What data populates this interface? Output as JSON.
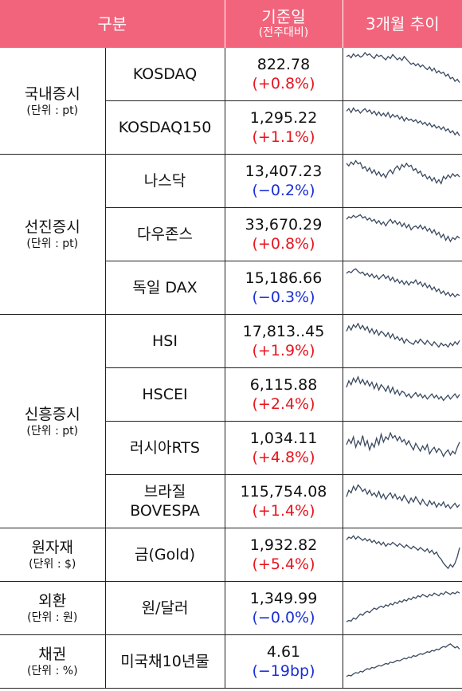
{
  "header": {
    "col_category": "구분",
    "col_value_main": "기준일",
    "col_value_sub": "(전주대비)",
    "col_trend": "3개월 추이"
  },
  "groups": [
    {
      "name": "국내증시",
      "unit": "(단위 : pt)",
      "rows": [
        {
          "name": "KOSDAQ",
          "value": "822.78",
          "change": "(+0.8%)",
          "dir": "up",
          "trend": [
            60,
            62,
            58,
            64,
            60,
            63,
            59,
            61,
            66,
            62,
            64,
            60,
            57,
            63,
            60,
            62,
            58,
            55,
            60,
            57,
            63,
            59,
            55,
            58,
            54,
            60,
            56,
            52,
            48,
            50,
            46,
            49,
            44,
            47,
            43,
            40,
            44,
            38,
            42,
            35,
            38,
            34,
            36,
            30,
            33,
            26,
            28,
            22,
            25,
            20
          ]
        },
        {
          "name": "KOSDAQ150",
          "value": "1,295.22",
          "change": "(+1.1%)",
          "dir": "up",
          "trend": [
            58,
            62,
            56,
            63,
            58,
            60,
            55,
            59,
            62,
            57,
            60,
            54,
            58,
            52,
            57,
            51,
            55,
            50,
            56,
            48,
            53,
            49,
            52,
            46,
            50,
            43,
            48,
            44,
            46,
            42,
            45,
            40,
            43,
            38,
            41,
            36,
            40,
            34,
            37,
            32,
            35,
            30,
            34,
            28,
            31,
            25,
            28,
            22,
            26,
            20
          ]
        }
      ]
    },
    {
      "name": "선진증시",
      "unit": "(단위 : pt)",
      "rows": [
        {
          "name": "나스닥",
          "value": "13,407.23",
          "change": "(−0.2%)",
          "dir": "down",
          "trend": [
            60,
            56,
            62,
            58,
            64,
            59,
            61,
            52,
            55,
            48,
            53,
            45,
            50,
            42,
            47,
            40,
            44,
            38,
            46,
            50,
            44,
            52,
            56,
            50,
            58,
            54,
            60,
            55,
            57,
            49,
            52,
            45,
            48,
            40,
            43,
            36,
            40,
            33,
            38,
            30,
            35,
            29,
            40,
            36,
            42,
            38,
            44,
            40,
            43,
            39
          ]
        },
        {
          "name": "다우존스",
          "value": "33,670.29",
          "change": "(+0.8%)",
          "dir": "up",
          "trend": [
            56,
            60,
            58,
            62,
            59,
            61,
            63,
            58,
            60,
            55,
            58,
            53,
            56,
            50,
            54,
            48,
            52,
            46,
            52,
            56,
            50,
            54,
            48,
            52,
            45,
            50,
            43,
            48,
            40,
            44,
            46,
            42,
            47,
            41,
            45,
            38,
            42,
            35,
            40,
            32,
            36,
            28,
            33,
            24,
            30,
            22,
            28,
            25,
            30,
            27
          ]
        },
        {
          "name": "독일 DAX",
          "value": "15,186.66",
          "change": "(−0.3%)",
          "dir": "down",
          "trend": [
            55,
            58,
            56,
            60,
            62,
            58,
            55,
            57,
            52,
            55,
            50,
            54,
            48,
            52,
            46,
            50,
            53,
            47,
            51,
            44,
            49,
            42,
            46,
            40,
            44,
            38,
            43,
            37,
            42,
            40,
            45,
            38,
            42,
            35,
            40,
            33,
            37,
            30,
            34,
            27,
            31,
            24,
            28,
            22,
            26,
            20,
            24,
            19,
            23,
            21
          ]
        }
      ]
    },
    {
      "name": "신흥증시",
      "unit": "(단위 : pt)",
      "rows": [
        {
          "name": "HSI",
          "value": "17,813..45",
          "change": "(+1.9%)",
          "dir": "up",
          "trend": [
            48,
            56,
            50,
            58,
            54,
            60,
            52,
            57,
            50,
            55,
            46,
            52,
            44,
            50,
            42,
            48,
            45,
            40,
            46,
            38,
            44,
            36,
            40,
            34,
            38,
            30,
            36,
            32,
            30,
            28,
            34,
            30,
            36,
            32,
            28,
            34,
            30,
            26,
            32,
            28,
            24,
            30,
            26,
            28,
            24,
            30,
            26,
            32,
            28,
            34
          ]
        },
        {
          "name": "HSCEI",
          "value": "6,115.88",
          "change": "(+2.4%)",
          "dir": "up",
          "trend": [
            44,
            54,
            48,
            58,
            52,
            60,
            50,
            56,
            48,
            54,
            46,
            52,
            42,
            50,
            40,
            48,
            44,
            38,
            46,
            36,
            44,
            34,
            40,
            32,
            38,
            36,
            30,
            34,
            28,
            32,
            36,
            30,
            34,
            28,
            32,
            26,
            30,
            34,
            28,
            32,
            26,
            30,
            24,
            28,
            32,
            26,
            30,
            34,
            28,
            33
          ]
        },
        {
          "name": "러시아RTS",
          "value": "1,034.11",
          "change": "(+4.8%)",
          "dir": "up",
          "trend": [
            38,
            46,
            40,
            50,
            34,
            44,
            38,
            52,
            36,
            44,
            30,
            40,
            34,
            48,
            38,
            54,
            42,
            50,
            46,
            56,
            48,
            52,
            44,
            50,
            42,
            46,
            38,
            44,
            36,
            30,
            40,
            34,
            28,
            36,
            30,
            38,
            24,
            30,
            34,
            26,
            32,
            28,
            20,
            26,
            30,
            22,
            28,
            24,
            34,
            42
          ]
        },
        {
          "name": "브라질\nBOVESPA",
          "value": "115,754.08",
          "change": "(+1.4%)",
          "dir": "up",
          "trend": [
            40,
            50,
            46,
            56,
            50,
            58,
            54,
            48,
            52,
            44,
            50,
            42,
            46,
            40,
            48,
            38,
            44,
            36,
            42,
            46,
            38,
            44,
            36,
            40,
            34,
            42,
            36,
            30,
            38,
            32,
            40,
            34,
            28,
            36,
            30,
            26,
            34,
            28,
            32,
            24,
            30,
            26,
            32,
            24,
            28,
            22,
            26,
            30,
            24,
            28
          ]
        }
      ]
    },
    {
      "name": "원자재",
      "unit": "(단위 : $)",
      "rows": [
        {
          "name": "금(Gold)",
          "value": "1,932.82",
          "change": "(+5.4%)",
          "dir": "up",
          "trend": [
            56,
            60,
            58,
            62,
            57,
            61,
            58,
            55,
            58,
            54,
            57,
            52,
            55,
            50,
            53,
            48,
            52,
            46,
            50,
            48,
            52,
            49,
            46,
            50,
            47,
            44,
            48,
            45,
            42,
            46,
            43,
            40,
            44,
            41,
            38,
            42,
            36,
            40,
            34,
            37,
            30,
            26,
            20,
            16,
            12,
            18,
            14,
            20,
            30,
            44
          ]
        }
      ]
    },
    {
      "name": "외환",
      "unit": "(단위 : 원)",
      "rows": [
        {
          "name": "원/달러",
          "value": "1,349.99",
          "change": "(−0.0%)",
          "dir": "down",
          "trend": [
            12,
            14,
            13,
            18,
            16,
            20,
            24,
            22,
            26,
            28,
            26,
            30,
            33,
            31,
            34,
            36,
            34,
            38,
            36,
            40,
            38,
            42,
            40,
            44,
            42,
            46,
            44,
            48,
            46,
            50,
            48,
            52,
            50,
            54,
            52,
            50,
            54,
            52,
            56,
            54,
            52,
            56,
            54,
            58,
            56,
            54,
            57,
            55,
            58,
            56
          ]
        }
      ]
    },
    {
      "name": "채권",
      "unit": "(단위 : %)",
      "rows": [
        {
          "name": "미국채10년물",
          "value": "4.61",
          "change": "(−19bp)",
          "dir": "down",
          "trend": [
            10,
            12,
            11,
            14,
            16,
            15,
            18,
            17,
            20,
            22,
            21,
            24,
            23,
            25,
            27,
            26,
            28,
            30,
            29,
            32,
            31,
            33,
            35,
            34,
            36,
            38,
            37,
            40,
            39,
            42,
            41,
            43,
            45,
            44,
            46,
            48,
            47,
            50,
            49,
            52,
            51,
            54,
            56,
            55,
            58,
            60,
            57,
            54,
            56,
            52
          ]
        }
      ]
    }
  ]
}
